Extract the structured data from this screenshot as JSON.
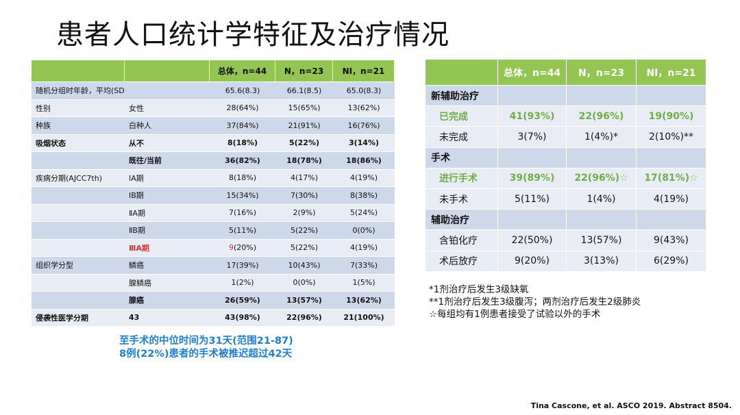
{
  "title": "患者人口统计学特征及治疗情况",
  "left_table": {
    "headers": [
      "",
      "",
      "总体，n=44",
      "N，n=23",
      "NI，n=21"
    ],
    "rows": [
      [
        "随机分组时年龄，平均(SD)",
        "",
        "65.6(8.3)",
        "66.1(8.5)",
        "65.0(8.3)"
      ],
      [
        "性别",
        "女性",
        "28(64%)",
        "15(65%)",
        "13(62%)"
      ],
      [
        "种族",
        "白种人",
        "37(84%)",
        "21(91%)",
        "16(76%)"
      ],
      [
        "吸烟状态",
        "从不",
        "8(18%)",
        "5(22%)",
        "3(14%)"
      ],
      [
        "",
        "既往/当前",
        "36(82%)",
        "18(78%)",
        "18(86%)"
      ],
      [
        "疾病分期(AJCC7th)",
        "ⅠA期",
        "8(18%)",
        "4(17%)",
        "4(19%)"
      ],
      [
        "",
        "ⅠB期",
        "15(34%)",
        "7(30%)",
        "8(38%)"
      ],
      [
        "",
        "ⅡA期",
        "7(16%)",
        "2(9%)",
        "5(24%)"
      ],
      [
        "",
        "ⅡB期",
        "5(11%)",
        "5(22%)",
        "0(0%)"
      ],
      [
        "",
        "ⅢA期",
        "9(20%)",
        "5(22%)",
        "4(19%)"
      ],
      [
        "组织学分型",
        "鳞癌",
        "17(39%)",
        "10(43%)",
        "7(33%)"
      ],
      [
        "",
        "腺鳞癌",
        "1(2%)",
        "0(0%)",
        "1(5%)"
      ],
      [
        "",
        "腺癌",
        "26(59%)",
        "13(57%)",
        "13(62%)"
      ],
      [
        "侵袭性医学分期",
        "43",
        "43(98%)",
        "22(96%)",
        "21(100%)"
      ]
    ]
  },
  "right_table": {
    "headers": [
      "",
      "总体，n=44",
      "N，n=23",
      "NI，n=21"
    ],
    "rows": [
      [
        "新辅助治疗",
        "",
        "",
        ""
      ],
      [
        "已完成",
        "41(93%)",
        "22(96%)",
        "19(90%)"
      ],
      [
        "未完成",
        "3(7%)",
        "1(4%)*",
        "2(10%)**"
      ],
      [
        "手术",
        "",
        "",
        ""
      ],
      [
        "进行手术",
        "39(89%)",
        "22(96%)",
        "17(81%)"
      ],
      [
        "未手术",
        "5(11%)",
        "1(4%)",
        "4(19%)"
      ],
      [
        "辅助治疗",
        "",
        "",
        ""
      ],
      [
        "含铂化疗",
        "22(50%)",
        "13(57%)",
        "9(43%)"
      ],
      [
        "术后放疗",
        "9(20%)",
        "3(13%)",
        "6(29%)"
      ]
    ],
    "marks": [
      "☆",
      "☆"
    ]
  },
  "notes": [
    "*1剂治疗后发生3级缺氧",
    "**1剂治疗后发生3级腹泻；两剂治疗后发生2级肺炎",
    "☆每组均有1例患者接受了试验以外的手术"
  ],
  "summary": [
    "至手术的中位时间为31天(范围21-87)",
    "8例(22%)患者的手术被推迟超过42天"
  ],
  "citation": "Tina Cascone, et al. ASCO 2019. Abstract 8504.",
  "colors": {
    "header_green": "#92c552",
    "row_blue": "#cdd8ea",
    "row_light": "#e8edf5",
    "accent_blue": "#1e7ed0",
    "highlight_red": "#e03030",
    "highlight_green": "#70ad47"
  }
}
